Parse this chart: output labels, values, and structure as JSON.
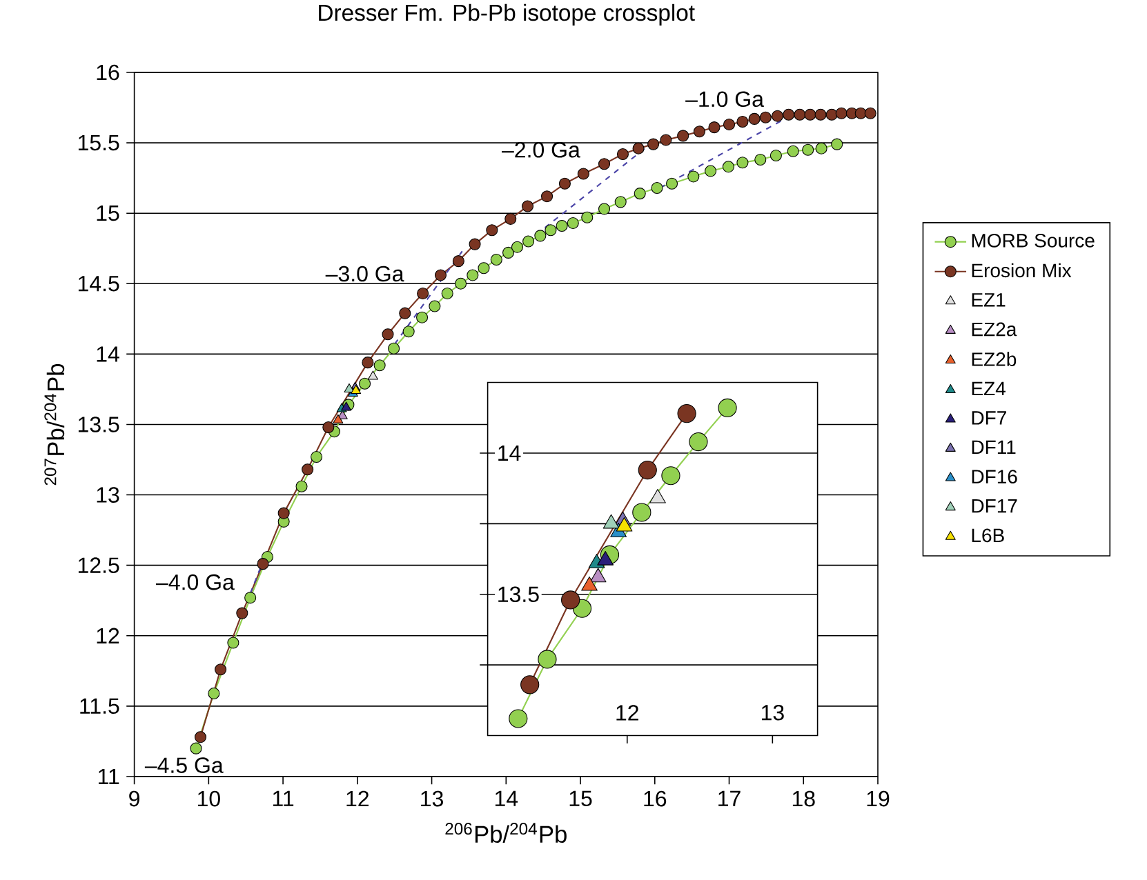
{
  "chart_data": [
    {
      "type": "line",
      "title": "Dresser Fm. Pb-Pb isotope crossplot",
      "xlabel": "$^{206}$Pb/$^{204}$Pb",
      "ylabel": "$^{207}$Pb/$^{204}$Pb",
      "xlim": [
        9,
        19
      ],
      "ylim": [
        11,
        16
      ],
      "xticks": [
        9,
        10,
        11,
        12,
        13,
        14,
        15,
        16,
        17,
        18,
        19
      ],
      "yticks": [
        11,
        11.5,
        12,
        12.5,
        13,
        13.5,
        14,
        14.5,
        15,
        15.5,
        16
      ],
      "grid": "y",
      "legend": "right",
      "annotations": [
        "–1.0 Ga",
        "–2.0 Ga",
        "–3.0 Ga",
        "–4.0 Ga",
        "–4.5 Ga"
      ],
      "series": [
        {
          "name": "MORB Source",
          "color": "#92d050",
          "marker": "circle",
          "line_style": "solid",
          "x": [
            9.83,
            10.07,
            10.33,
            10.56,
            10.79,
            11.01,
            11.25,
            11.45,
            11.69,
            11.88,
            12.1,
            12.3,
            12.49,
            12.69,
            12.87,
            13.04,
            13.21,
            13.39,
            13.55,
            13.7,
            13.87,
            14.03,
            14.15,
            14.3,
            14.46,
            14.6,
            14.75,
            14.9,
            15.09,
            15.32,
            15.54,
            15.8,
            16.03,
            16.23,
            16.52,
            16.75,
            16.99,
            17.18,
            17.42,
            17.63,
            17.86,
            18.06,
            18.24,
            18.45
          ],
          "values": [
            11.2,
            11.59,
            11.95,
            12.27,
            12.56,
            12.81,
            13.06,
            13.27,
            13.45,
            13.64,
            13.79,
            13.92,
            14.04,
            14.16,
            14.26,
            14.34,
            14.43,
            14.5,
            14.56,
            14.61,
            14.67,
            14.72,
            14.76,
            14.8,
            14.84,
            14.88,
            14.91,
            14.93,
            14.97,
            15.03,
            15.08,
            15.14,
            15.18,
            15.21,
            15.26,
            15.3,
            15.33,
            15.36,
            15.38,
            15.41,
            15.44,
            15.45,
            15.46,
            15.49
          ]
        },
        {
          "name": "Erosion Mix",
          "color": "#7a3522",
          "marker": "circle",
          "line_style": "solid",
          "x": [
            9.89,
            10.16,
            10.45,
            10.73,
            11.01,
            11.33,
            11.61,
            12.14,
            12.41,
            12.64,
            12.88,
            13.12,
            13.36,
            13.58,
            13.81,
            14.06,
            14.29,
            14.55,
            14.79,
            15.04,
            15.32,
            15.57,
            15.78,
            15.98,
            16.15,
            16.38,
            16.6,
            16.8,
            17.0,
            17.18,
            17.34,
            17.49,
            17.65,
            17.8,
            17.95,
            18.09,
            18.23,
            18.38,
            18.51,
            18.65,
            18.77,
            18.9
          ],
          "values": [
            11.28,
            11.76,
            12.16,
            12.51,
            12.87,
            13.18,
            13.48,
            13.94,
            14.14,
            14.29,
            14.43,
            14.56,
            14.66,
            14.78,
            14.88,
            14.96,
            15.05,
            15.12,
            15.21,
            15.28,
            15.35,
            15.42,
            15.46,
            15.49,
            15.52,
            15.55,
            15.58,
            15.61,
            15.63,
            15.65,
            15.67,
            15.68,
            15.69,
            15.7,
            15.7,
            15.7,
            15.7,
            15.7,
            15.71,
            15.71,
            15.71,
            15.71
          ]
        },
        {
          "name": "EZ1",
          "type": "scatter",
          "color": "#e0e0e0",
          "marker": "triangle",
          "x": [
            12.21
          ],
          "values": [
            13.84
          ]
        },
        {
          "name": "EZ2a",
          "type": "scatter",
          "color": "#b98fc4",
          "marker": "triangle",
          "x": [
            11.8
          ],
          "values": [
            13.56
          ]
        },
        {
          "name": "EZ2b",
          "type": "scatter",
          "color": "#e8602c",
          "marker": "triangle",
          "x": [
            11.74
          ],
          "values": [
            13.53
          ]
        },
        {
          "name": "EZ4",
          "type": "scatter",
          "color": "#1f8a8a",
          "marker": "triangle",
          "x": [
            11.79
          ],
          "values": [
            13.61
          ]
        },
        {
          "name": "DF7",
          "type": "scatter",
          "color": "#2a1f7a",
          "marker": "triangle",
          "x": [
            11.85
          ],
          "values": [
            13.62
          ]
        },
        {
          "name": "DF11",
          "type": "scatter",
          "color": "#7b72b0",
          "marker": "triangle",
          "x": [
            11.97
          ],
          "values": [
            13.76
          ]
        },
        {
          "name": "DF16",
          "type": "scatter",
          "color": "#2a8fc8",
          "marker": "triangle",
          "x": [
            11.94
          ],
          "values": [
            13.72
          ]
        },
        {
          "name": "DF17",
          "type": "scatter",
          "color": "#9fd0b8",
          "marker": "triangle",
          "x": [
            11.89
          ],
          "values": [
            13.75
          ]
        },
        {
          "name": "L6B",
          "type": "scatter",
          "color": "#f5e000",
          "marker": "triangle",
          "x": [
            11.98
          ],
          "values": [
            13.74
          ]
        },
        {
          "color": "#4b45a8",
          "marker": "none",
          "line_style": "dashed",
          "x": [
            10.56,
            10.71
          ],
          "values": [
            12.3,
            12.5
          ]
        },
        {
          "color": "#4b45a8",
          "marker": "none",
          "line_style": "dashed",
          "x": [
            12.5,
            13.41
          ],
          "values": [
            14.07,
            14.73
          ]
        },
        {
          "color": "#4b45a8",
          "marker": "none",
          "line_style": "dashed",
          "x": [
            14.29,
            16.01
          ],
          "values": [
            14.8,
            15.52
          ]
        },
        {
          "color": "#4b45a8",
          "marker": "none",
          "line_style": "dashed",
          "x": [
            16.07,
            17.92
          ],
          "values": [
            15.18,
            15.72
          ]
        }
      ]
    },
    {
      "type": "line",
      "xlim": [
        11.04,
        13.31
      ],
      "ylim": [
        13.0,
        14.25
      ],
      "xticks": [
        12,
        13
      ],
      "yticks": [
        {
          "value": 13.25,
          "label": null
        },
        13.5,
        {
          "value": 13.75,
          "label": null
        },
        14
      ],
      "grid": "y",
      "series": [
        {
          "color": "#92d050",
          "marker": "circle",
          "line_style": "solid",
          "x": [
            11.25,
            11.45,
            11.69,
            11.88,
            12.1,
            12.3,
            12.49,
            12.69
          ],
          "values": [
            13.06,
            13.27,
            13.45,
            13.64,
            13.79,
            13.92,
            14.04,
            14.16
          ]
        },
        {
          "color": "#7a3522",
          "marker": "circle",
          "line_style": "solid",
          "x": [
            11.33,
            11.61,
            12.14,
            12.41
          ],
          "values": [
            13.18,
            13.48,
            13.94,
            14.14
          ]
        },
        {
          "type": "scatter",
          "color": "#e0e0e0",
          "marker": "triangle",
          "x": [
            12.21
          ],
          "values": [
            13.84
          ]
        },
        {
          "type": "scatter",
          "color": "#b98fc4",
          "marker": "triangle",
          "x": [
            11.8
          ],
          "values": [
            13.56
          ]
        },
        {
          "type": "scatter",
          "color": "#e8602c",
          "marker": "triangle",
          "x": [
            11.74
          ],
          "values": [
            13.53
          ]
        },
        {
          "type": "scatter",
          "color": "#1f8a8a",
          "marker": "triangle",
          "x": [
            11.79
          ],
          "values": [
            13.61
          ]
        },
        {
          "type": "scatter",
          "color": "#2a1f7a",
          "marker": "triangle",
          "x": [
            11.85
          ],
          "values": [
            13.62
          ]
        },
        {
          "type": "scatter",
          "color": "#7b72b0",
          "marker": "triangle",
          "x": [
            11.97
          ],
          "values": [
            13.76
          ]
        },
        {
          "type": "scatter",
          "color": "#2a8fc8",
          "marker": "triangle",
          "x": [
            11.94
          ],
          "values": [
            13.72
          ]
        },
        {
          "type": "scatter",
          "color": "#9fd0b8",
          "marker": "triangle",
          "x": [
            11.89
          ],
          "values": [
            13.75
          ]
        },
        {
          "type": "scatter",
          "color": "#f5e000",
          "marker": "triangle",
          "x": [
            11.98
          ],
          "values": [
            13.74
          ]
        }
      ]
    }
  ]
}
